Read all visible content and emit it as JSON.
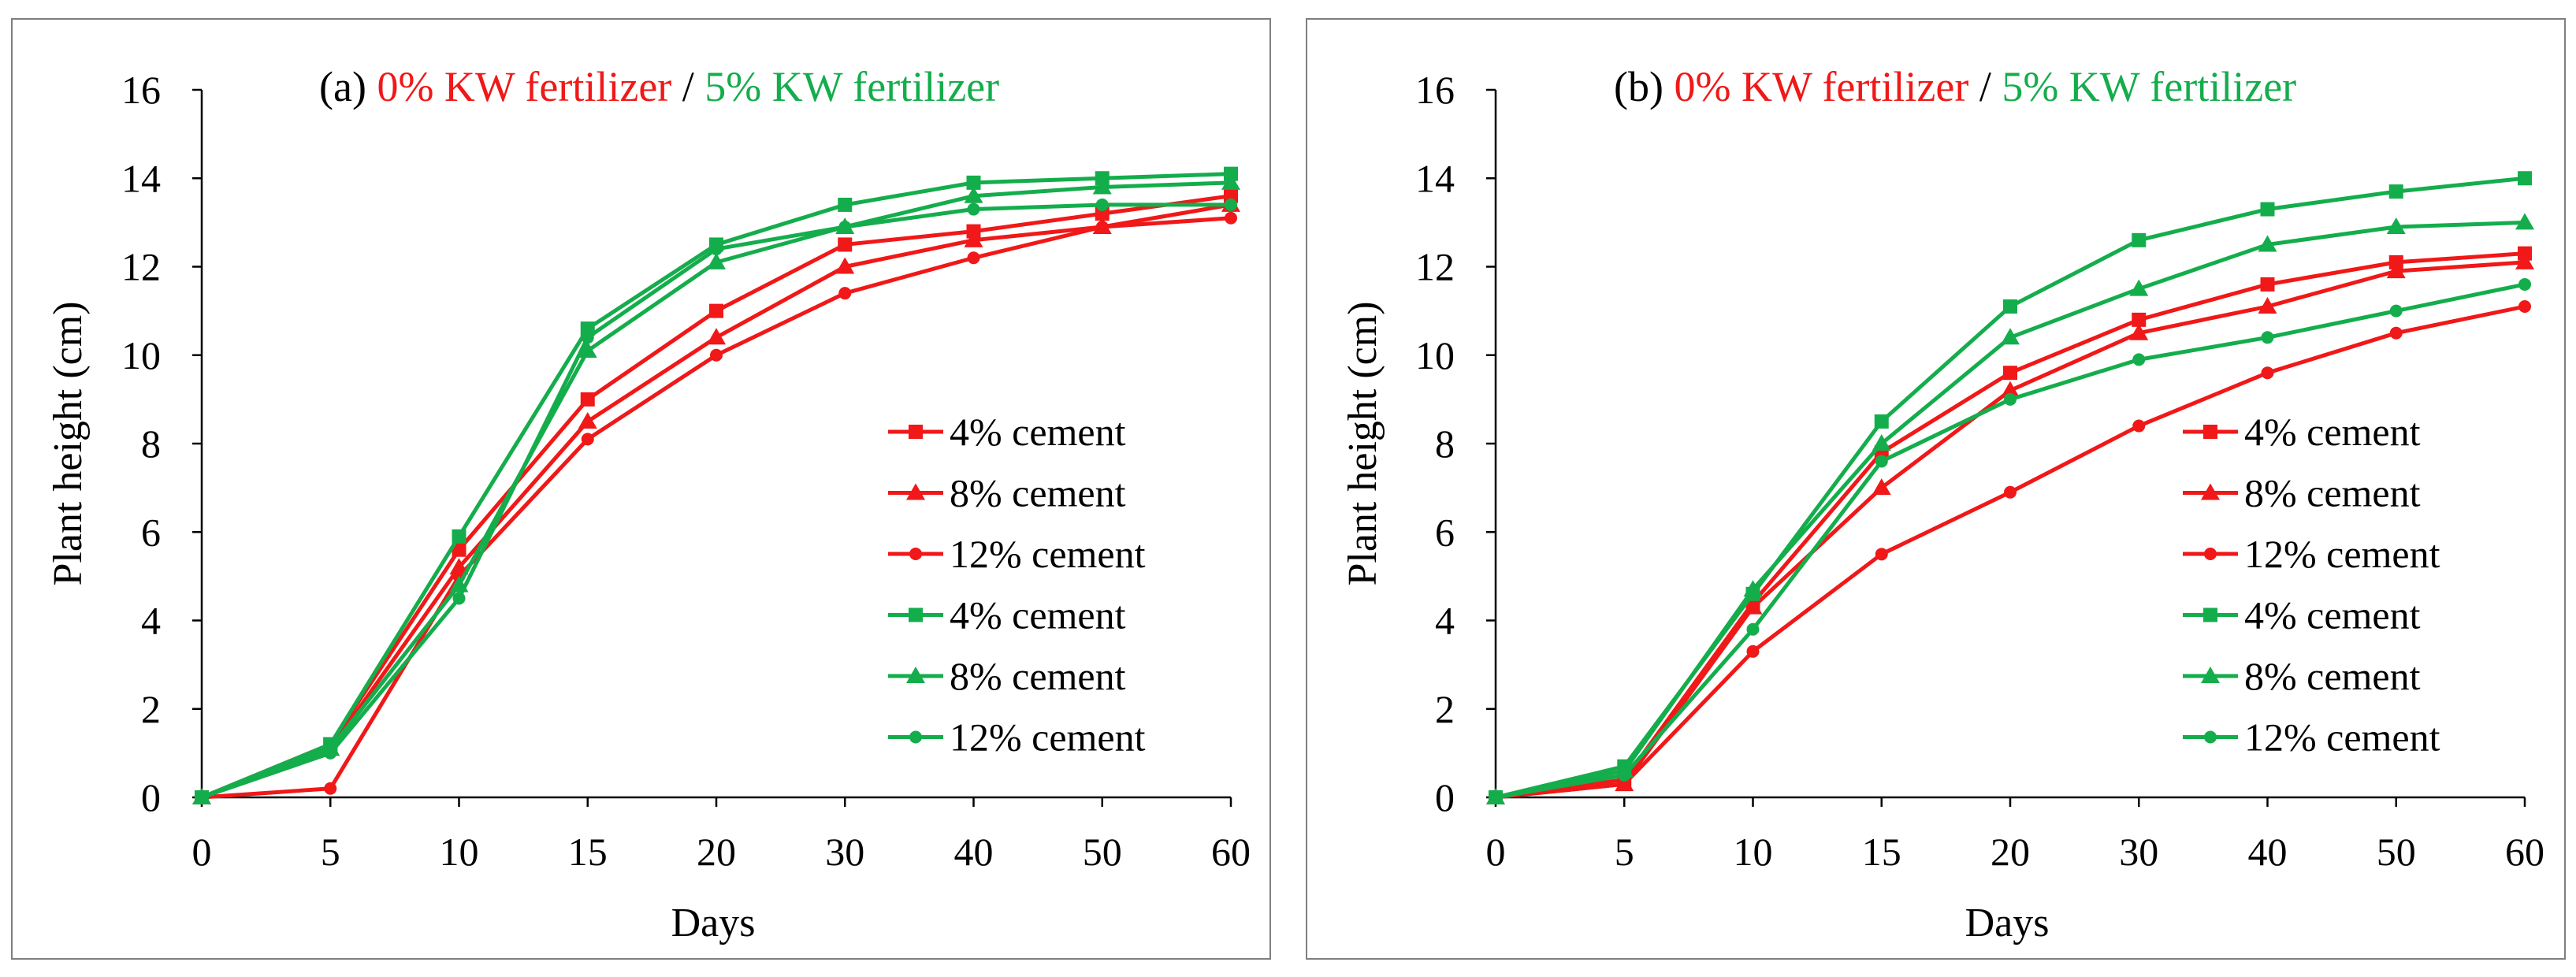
{
  "colors": {
    "red": "#f01818",
    "green": "#14ad4c",
    "axis": "#000000",
    "frame": "#7f7f7f"
  },
  "chart_data": [
    {
      "type": "line",
      "title_prefix": "(a) ",
      "title_red": "0% KW fertilizer",
      "title_sep": " / ",
      "title_green": "5% KW fertilizer",
      "xlabel": "Days",
      "ylabel": "Plant height (cm)",
      "categories": [
        "0",
        "5",
        "10",
        "15",
        "20",
        "30",
        "40",
        "50",
        "60"
      ],
      "ylim": [
        0,
        16
      ],
      "yticks": [
        "0",
        "2",
        "4",
        "6",
        "8",
        "10",
        "12",
        "14",
        "16"
      ],
      "grid": false,
      "legend_position": "right",
      "series": [
        {
          "name": "4% cement",
          "color": "red",
          "marker": "square",
          "values": [
            0,
            1.2,
            5.6,
            9.0,
            11.0,
            12.5,
            12.8,
            13.2,
            13.6
          ]
        },
        {
          "name": "8% cement",
          "color": "red",
          "marker": "triangle",
          "values": [
            0,
            1.1,
            5.2,
            8.5,
            10.4,
            12.0,
            12.6,
            12.9,
            13.4
          ]
        },
        {
          "name": "12% cement",
          "color": "red",
          "marker": "circle",
          "values": [
            0,
            0.2,
            5.0,
            8.1,
            10.0,
            11.4,
            12.2,
            12.9,
            13.1
          ]
        },
        {
          "name": "4% cement",
          "color": "green",
          "marker": "square",
          "values": [
            0,
            1.2,
            5.9,
            10.6,
            12.5,
            13.4,
            13.9,
            14.0,
            14.1
          ]
        },
        {
          "name": "8% cement",
          "color": "green",
          "marker": "triangle",
          "values": [
            0,
            1.1,
            4.8,
            10.1,
            12.1,
            12.9,
            13.6,
            13.8,
            13.9
          ]
        },
        {
          "name": "12% cement",
          "color": "green",
          "marker": "circle",
          "values": [
            0,
            1.0,
            4.5,
            10.4,
            12.4,
            12.9,
            13.3,
            13.4,
            13.4
          ]
        }
      ]
    },
    {
      "type": "line",
      "title_prefix": "(b) ",
      "title_red": "0% KW fertilizer",
      "title_sep": " / ",
      "title_green": "5% KW fertilizer",
      "xlabel": "Days",
      "ylabel": "Plant height (cm)",
      "categories": [
        "0",
        "5",
        "10",
        "15",
        "20",
        "30",
        "40",
        "50",
        "60"
      ],
      "ylim": [
        0,
        16
      ],
      "yticks": [
        "0",
        "2",
        "4",
        "6",
        "8",
        "10",
        "12",
        "14",
        "16"
      ],
      "grid": false,
      "legend_position": "right",
      "series": [
        {
          "name": "4% cement",
          "color": "red",
          "marker": "square",
          "values": [
            0,
            0.4,
            4.4,
            7.8,
            9.6,
            10.8,
            11.6,
            12.1,
            12.3
          ]
        },
        {
          "name": "8% cement",
          "color": "red",
          "marker": "triangle",
          "values": [
            0,
            0.3,
            4.3,
            7.0,
            9.2,
            10.5,
            11.1,
            11.9,
            12.1
          ]
        },
        {
          "name": "12% cement",
          "color": "red",
          "marker": "circle",
          "values": [
            0,
            0.3,
            3.3,
            5.5,
            6.9,
            8.4,
            9.6,
            10.5,
            11.1
          ]
        },
        {
          "name": "4% cement",
          "color": "green",
          "marker": "square",
          "values": [
            0,
            0.7,
            4.6,
            8.5,
            11.1,
            12.6,
            13.3,
            13.7,
            14.0
          ]
        },
        {
          "name": "8% cement",
          "color": "green",
          "marker": "triangle",
          "values": [
            0,
            0.6,
            4.7,
            8.0,
            10.4,
            11.5,
            12.5,
            12.9,
            13.0
          ]
        },
        {
          "name": "12% cement",
          "color": "green",
          "marker": "circle",
          "values": [
            0,
            0.5,
            3.8,
            7.6,
            9.0,
            9.9,
            10.4,
            11.0,
            11.6
          ]
        }
      ]
    }
  ]
}
